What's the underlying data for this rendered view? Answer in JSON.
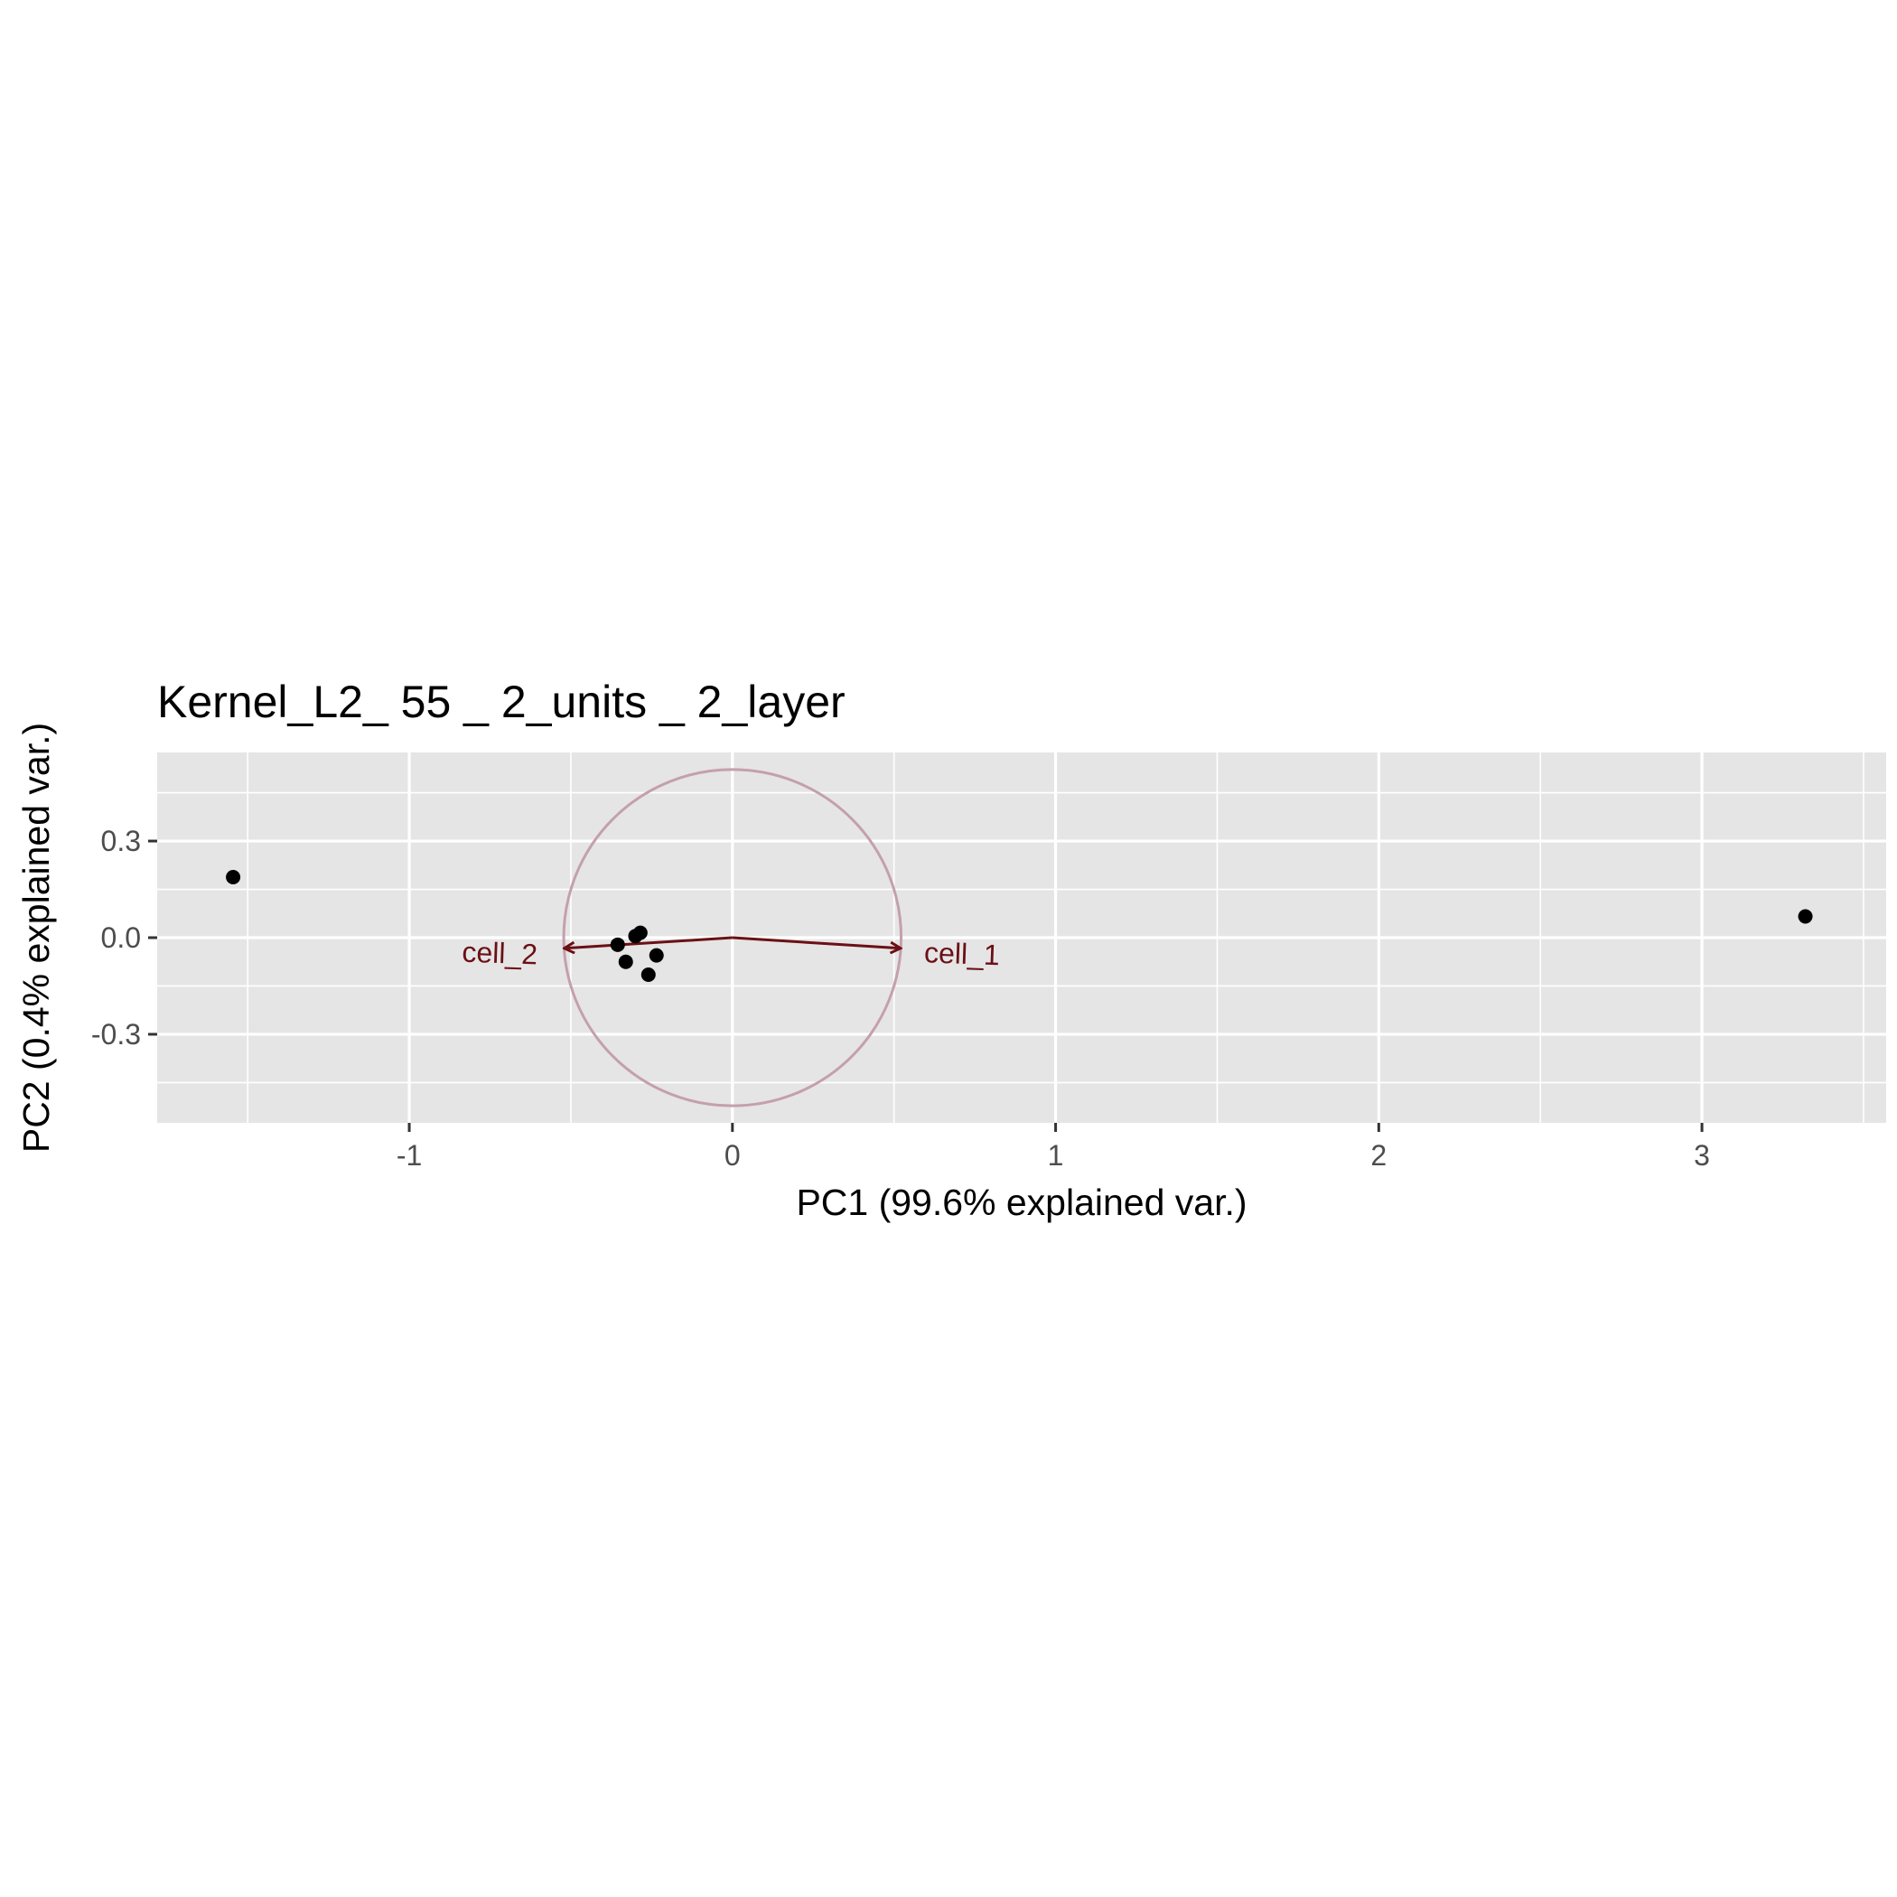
{
  "chart_data": {
    "type": "scatter",
    "title": "Kernel_L2_ 55 _ 2_units _ 2_layer",
    "xlabel": "PC1 (99.6% explained var.)",
    "ylabel": "PC2 (0.4% explained var.)",
    "xlim": [
      -1.78,
      3.57
    ],
    "ylim": [
      -0.575,
      0.575
    ],
    "x_ticks": [
      -1,
      0,
      1,
      2,
      3
    ],
    "x_tick_labels": [
      "-1",
      "0",
      "1",
      "2",
      "3"
    ],
    "y_ticks": [
      -0.3,
      0.0,
      0.3
    ],
    "y_tick_labels": [
      "-0.3",
      "0.0",
      "0.3"
    ],
    "x_minor_ticks": [
      -1.5,
      -0.5,
      0.5,
      1.5,
      2.5,
      3.5
    ],
    "y_minor_ticks": [
      -0.45,
      -0.15,
      0.15,
      0.45
    ],
    "grid": true,
    "points": [
      {
        "x": -1.545,
        "y": 0.188
      },
      {
        "x": 3.32,
        "y": 0.066
      },
      {
        "x": -0.355,
        "y": -0.022
      },
      {
        "x": -0.33,
        "y": -0.075
      },
      {
        "x": -0.3,
        "y": 0.005
      },
      {
        "x": -0.285,
        "y": 0.015
      },
      {
        "x": -0.235,
        "y": -0.055
      },
      {
        "x": -0.26,
        "y": -0.115
      }
    ],
    "correlation_circle": {
      "cx": 0,
      "cy": 0,
      "r": 0.522,
      "color": "#C4A0AB"
    },
    "loadings": [
      {
        "name": "cell_1",
        "x": 0.52,
        "y": -0.033,
        "label_x": 0.71,
        "label_y": -0.057
      },
      {
        "name": "cell_2",
        "x": -0.52,
        "y": -0.033,
        "label_x": -0.72,
        "label_y": -0.055
      }
    ],
    "point_color": "#000000",
    "arrow_color": "#6B1015",
    "panel_background": "#E5E5E5",
    "grid_color": "#FFFFFF"
  }
}
